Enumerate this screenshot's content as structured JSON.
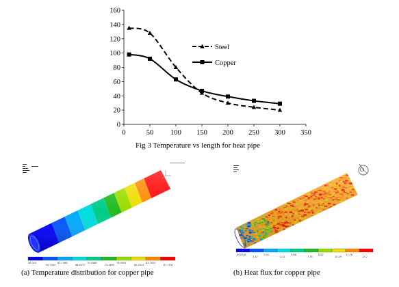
{
  "figure": {
    "caption_main": "Fig 3 Temperature vs length for heat pipe",
    "caption_a": "(a) Temperature distribution for copper pipe",
    "caption_b": "(b) Heat flux for copper pipe"
  },
  "chart_data": {
    "type": "line",
    "title": "",
    "xlabel": "",
    "ylabel": "",
    "x": [
      10,
      50,
      100,
      150,
      200,
      250,
      300
    ],
    "xlim": [
      0,
      350
    ],
    "ylim": [
      0,
      160
    ],
    "xticks": [
      0,
      50,
      100,
      150,
      200,
      250,
      300,
      350
    ],
    "yticks": [
      0,
      20,
      40,
      60,
      80,
      100,
      120,
      140,
      160
    ],
    "grid": false,
    "legend_position": "right",
    "series": [
      {
        "name": "Steel",
        "values": [
          135,
          128,
          80,
          44,
          30,
          24,
          20
        ],
        "style": "dashed",
        "marker": "triangle",
        "color": "#000000"
      },
      {
        "name": "Copper",
        "values": [
          98,
          92,
          63,
          47,
          39,
          33,
          29
        ],
        "style": "solid",
        "marker": "square",
        "color": "#000000"
      }
    ]
  },
  "panels": {
    "a": {
      "legend_values": [
        "56.315",
        "59.7459",
        "63.1768",
        "66.6077",
        "70.0386",
        "73.4695",
        "76.9004",
        "80.3313",
        "83.7622",
        "87.1931"
      ],
      "colors": [
        "#0000ff",
        "#0055ff",
        "#00aaff",
        "#00dddd",
        "#00cc88",
        "#22bb22",
        "#99dd00",
        "#eedd00",
        "#ff8800",
        "#ff0000"
      ]
    },
    "b": {
      "legend_values": [
        ".002518",
        "1.47",
        "2.94",
        "4.41",
        "5.88",
        "7.35",
        "8.82",
        "10.29",
        "11.76",
        "13.2"
      ],
      "colors": [
        "#0000ff",
        "#0055ff",
        "#00aaff",
        "#00dddd",
        "#00cc88",
        "#22bb22",
        "#99dd00",
        "#eedd00",
        "#ff8800",
        "#ff0000"
      ]
    }
  }
}
